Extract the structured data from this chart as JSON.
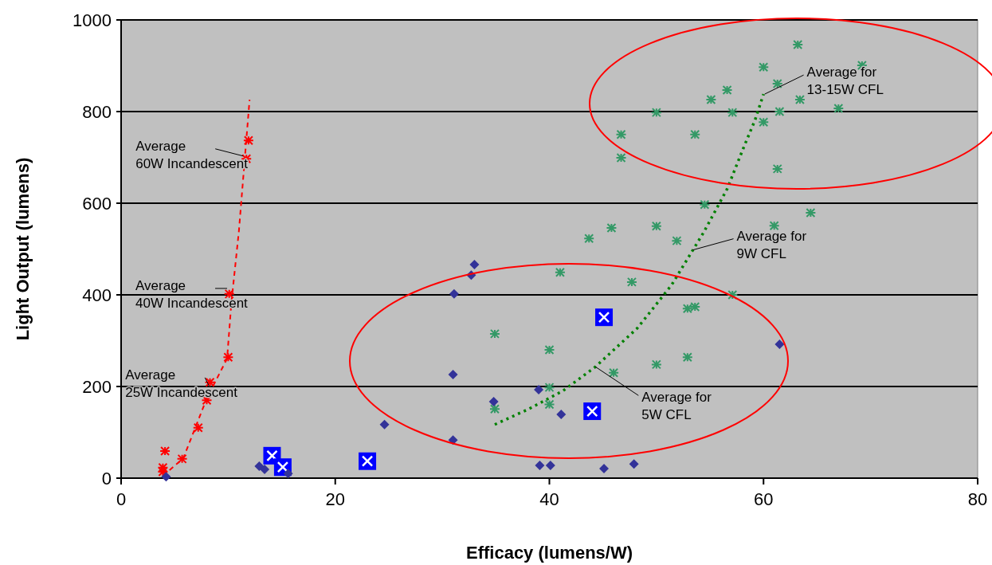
{
  "chart_data": {
    "type": "scatter",
    "xlabel": "Efficacy (lumens/W)",
    "ylabel": "Light Output (lumens)",
    "xlim": [
      0,
      80
    ],
    "xticks": [
      0,
      20,
      40,
      60,
      80
    ],
    "ylim": [
      0,
      1000
    ],
    "yticks": [
      0,
      200,
      400,
      600,
      800,
      1000
    ],
    "grid": "y",
    "series": [
      {
        "type": "scatter",
        "marker": "cross",
        "color": "#ff0000",
        "x": [
          11.9,
          11.7,
          10.1,
          10,
          8.3,
          8,
          7.2,
          5.7,
          4.1,
          3.9,
          3.9
        ],
        "values": [
          737,
          697,
          402,
          264,
          209,
          170,
          110,
          42,
          59,
          23,
          14
        ]
      },
      {
        "type": "line",
        "line_style": "dashed",
        "color": "#ff0000",
        "x": [
          3.9,
          5.8,
          8,
          9.9,
          10.3,
          11,
          12
        ],
        "values": [
          5,
          43,
          174,
          261,
          383,
          539,
          826
        ]
      },
      {
        "type": "scatter",
        "marker": "cross",
        "color": "#339966",
        "x": [
          63.2,
          69.2,
          60,
          61.3,
          56.6,
          55.1,
          63.4,
          50,
          57.1,
          61.5,
          67,
          60,
          46.7,
          53.6,
          46.7,
          61.3,
          64.4,
          54.5,
          45.8,
          50,
          43.7,
          51.9,
          61,
          41,
          47.7,
          57.1,
          52.9,
          53.6,
          52.9,
          50,
          46,
          34.9,
          40,
          40,
          40,
          34.9
        ],
        "values": [
          946,
          901,
          897,
          861,
          847,
          826,
          826,
          798,
          798,
          800,
          807,
          777,
          750,
          750,
          699,
          675,
          579,
          597,
          546,
          550,
          523,
          518,
          551,
          449,
          428,
          400,
          370,
          374,
          264,
          248,
          230,
          315,
          280,
          198,
          161,
          151
        ]
      },
      {
        "type": "line",
        "line_style": "dotted",
        "color": "#008000",
        "x": [
          34.9,
          38,
          41.3,
          44.3,
          48.2,
          51.4,
          54.4,
          56.6,
          58.2,
          59.2,
          60
        ],
        "values": [
          117,
          150,
          191,
          243,
          327,
          421,
          536,
          631,
          725,
          781,
          838
        ]
      },
      {
        "type": "scatter",
        "marker": "square",
        "color": "#0000ff",
        "x": [
          14.1,
          15.1,
          23,
          45.1,
          44
        ],
        "values": [
          49,
          24,
          37,
          351,
          146
        ]
      },
      {
        "type": "scatter",
        "marker": "diamond",
        "color": "#333399",
        "x": [
          4.2,
          12.9,
          13.4,
          15.6,
          24.6,
          31,
          31.1,
          32.7,
          33,
          31,
          34.8,
          39,
          39.1,
          40.1,
          41.1,
          45.1,
          47.9,
          61.5
        ],
        "values": [
          3,
          26,
          19,
          10,
          117,
          226,
          402,
          443,
          466,
          83,
          167,
          193,
          28,
          28,
          139,
          21,
          31,
          292
        ]
      }
    ],
    "annotations": [
      {
        "text": "Average\n60W Incandescent",
        "x": 11.4,
        "y": 703
      },
      {
        "text": "Average\n40W Incandescent",
        "x": 9.9,
        "y": 414
      },
      {
        "text": "Average\n25W Incandescent",
        "x": 8.2,
        "y": 202
      },
      {
        "text": "Average for\n9W CFL",
        "x": 53.4,
        "y": 498
      },
      {
        "text": "Average for\n5W CFL",
        "x": 44.3,
        "y": 243
      },
      {
        "text": "Average for\n13-15W CFL",
        "x": 60.1,
        "y": 838
      }
    ]
  }
}
